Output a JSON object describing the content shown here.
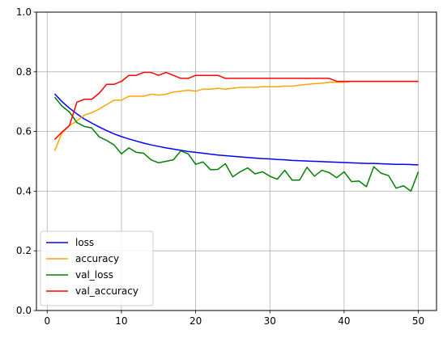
{
  "chart_data": {
    "type": "line",
    "title": "",
    "xlabel": "",
    "ylabel": "",
    "xlim": [
      -1.45,
      52.45
    ],
    "ylim": [
      0.0,
      1.0
    ],
    "grid": true,
    "legend_position": "lower-left",
    "x_ticks": [
      0,
      10,
      20,
      30,
      40,
      50
    ],
    "x_tick_labels": [
      "0",
      "10",
      "20",
      "30",
      "40",
      "50"
    ],
    "y_ticks": [
      0.0,
      0.2,
      0.4,
      0.6,
      0.8,
      1.0
    ],
    "y_tick_labels": [
      "0.0",
      "0.2",
      "0.4",
      "0.6",
      "0.8",
      "1.0"
    ],
    "x": [
      1,
      2,
      3,
      4,
      5,
      6,
      7,
      8,
      9,
      10,
      11,
      12,
      13,
      14,
      15,
      16,
      17,
      18,
      19,
      20,
      21,
      22,
      23,
      24,
      25,
      26,
      27,
      28,
      29,
      30,
      31,
      32,
      33,
      34,
      35,
      36,
      37,
      38,
      39,
      40,
      41,
      42,
      43,
      44,
      45,
      46,
      47,
      48,
      49,
      50
    ],
    "series": [
      {
        "name": "loss",
        "color": "#0000ff",
        "values": [
          0.726,
          0.7,
          0.678,
          0.659,
          0.642,
          0.628,
          0.615,
          0.603,
          0.592,
          0.583,
          0.575,
          0.568,
          0.561,
          0.555,
          0.55,
          0.545,
          0.541,
          0.537,
          0.533,
          0.53,
          0.527,
          0.524,
          0.521,
          0.519,
          0.517,
          0.515,
          0.513,
          0.511,
          0.509,
          0.508,
          0.506,
          0.505,
          0.503,
          0.502,
          0.501,
          0.5,
          0.499,
          0.498,
          0.497,
          0.496,
          0.495,
          0.494,
          0.493,
          0.493,
          0.492,
          0.491,
          0.49,
          0.49,
          0.489,
          0.488
        ]
      },
      {
        "name": "accuracy",
        "color": "#ffa500",
        "values": [
          0.535,
          0.595,
          0.62,
          0.635,
          0.655,
          0.663,
          0.675,
          0.69,
          0.705,
          0.705,
          0.718,
          0.718,
          0.718,
          0.725,
          0.722,
          0.725,
          0.732,
          0.735,
          0.738,
          0.735,
          0.742,
          0.742,
          0.745,
          0.742,
          0.745,
          0.748,
          0.748,
          0.748,
          0.75,
          0.75,
          0.75,
          0.752,
          0.752,
          0.755,
          0.758,
          0.76,
          0.762,
          0.765,
          0.765,
          0.765,
          0.768,
          0.768,
          0.768,
          0.768,
          0.768,
          0.768,
          0.768,
          0.768,
          0.768,
          0.768
        ]
      },
      {
        "name": "val_loss",
        "color": "#008000",
        "values": [
          0.715,
          0.685,
          0.665,
          0.63,
          0.617,
          0.612,
          0.582,
          0.57,
          0.555,
          0.525,
          0.545,
          0.53,
          0.527,
          0.505,
          0.495,
          0.5,
          0.505,
          0.535,
          0.525,
          0.49,
          0.498,
          0.472,
          0.473,
          0.492,
          0.448,
          0.465,
          0.478,
          0.458,
          0.465,
          0.45,
          0.44,
          0.47,
          0.437,
          0.437,
          0.48,
          0.45,
          0.47,
          0.462,
          0.445,
          0.465,
          0.432,
          0.434,
          0.415,
          0.482,
          0.46,
          0.452,
          0.41,
          0.418,
          0.4,
          0.465
        ]
      },
      {
        "name": "val_accuracy",
        "color": "#ff0000",
        "values": [
          0.573,
          0.598,
          0.62,
          0.698,
          0.708,
          0.708,
          0.728,
          0.758,
          0.758,
          0.768,
          0.788,
          0.788,
          0.798,
          0.798,
          0.788,
          0.798,
          0.788,
          0.778,
          0.778,
          0.788,
          0.788,
          0.788,
          0.788,
          0.778,
          0.778,
          0.778,
          0.778,
          0.778,
          0.778,
          0.778,
          0.778,
          0.778,
          0.778,
          0.778,
          0.778,
          0.778,
          0.778,
          0.778,
          0.768,
          0.768,
          0.768,
          0.768,
          0.768,
          0.768,
          0.768,
          0.768,
          0.768,
          0.768,
          0.768,
          0.768
        ]
      }
    ]
  }
}
